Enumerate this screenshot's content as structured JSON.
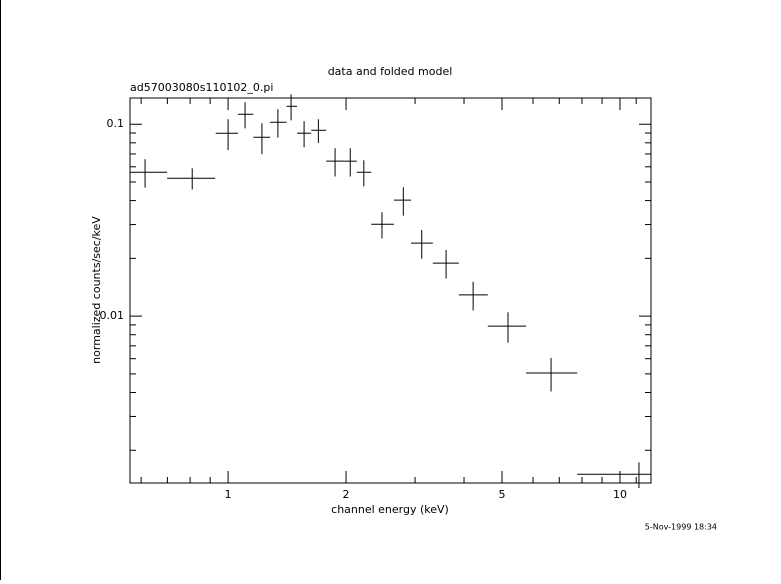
{
  "chart_data": {
    "type": "scatter",
    "title": "data and folded model",
    "subtitle": "ad57003080s110102_0.pi",
    "xlabel": "channel energy (keV)",
    "ylabel": "normalized counts/sec/keV",
    "timestamp": "5-Nov-1999 18:34",
    "xscale": "log",
    "yscale": "log",
    "color": "#000000",
    "x": [
      0.614,
      0.81,
      1.0,
      1.105,
      1.22,
      1.34,
      1.448,
      1.563,
      1.7,
      1.875,
      2.05,
      2.22,
      2.47,
      2.8,
      3.12,
      3.6,
      4.22,
      5.18,
      6.67,
      11.18
    ],
    "x_low": [
      0.562,
      0.699,
      0.93,
      1.06,
      1.16,
      1.28,
      1.41,
      1.5,
      1.63,
      1.78,
      1.98,
      2.13,
      2.32,
      2.65,
      2.93,
      3.33,
      3.88,
      4.6,
      5.76,
      7.78
    ],
    "x_high": [
      0.699,
      0.927,
      1.06,
      1.16,
      1.28,
      1.41,
      1.5,
      1.63,
      1.78,
      1.98,
      2.13,
      2.32,
      2.65,
      2.93,
      3.33,
      3.88,
      4.6,
      5.76,
      7.78,
      12.0
    ],
    "values": [
      0.0562,
      0.0523,
      0.0898,
      0.1127,
      0.0856,
      0.1024,
      0.124,
      0.0898,
      0.093,
      0.0642,
      0.0642,
      0.0562,
      0.0301,
      0.0402,
      0.024,
      0.0189,
      0.0129,
      0.00887,
      0.00505,
      0.0015
    ],
    "yerr": [
      0.0095,
      0.0066,
      0.0164,
      0.0175,
      0.0157,
      0.0173,
      0.0192,
      0.0139,
      0.0131,
      0.0108,
      0.0108,
      0.0087,
      0.0047,
      0.0068,
      0.0041,
      0.0032,
      0.0022,
      0.0016,
      0.001,
      0.00023
    ],
    "xlim": [
      0.562,
      12.0
    ],
    "ylim": [
      0.00135,
      0.137
    ],
    "xticks": [
      1,
      2,
      5,
      10
    ],
    "xminorticks": [
      0.6,
      0.7,
      0.8,
      0.9,
      3,
      4,
      6,
      7,
      8,
      9,
      11,
      12
    ],
    "yticks": [
      0.01,
      0.1
    ],
    "yminorticks": [
      0.002,
      0.003,
      0.004,
      0.005,
      0.006,
      0.007,
      0.008,
      0.009,
      0.02,
      0.03,
      0.04,
      0.05,
      0.06,
      0.07,
      0.08,
      0.09
    ]
  }
}
